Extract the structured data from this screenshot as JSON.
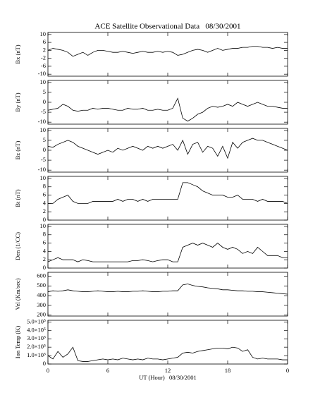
{
  "chart_data": {
    "title": "ACE Satellite Observational Data   08/30/2001",
    "xlabel": "UT (Hour)   08/30/2001",
    "xlim": [
      0,
      24
    ],
    "xticks": [
      0,
      6,
      12,
      18,
      {
        "value": 24,
        "label": "0"
      }
    ],
    "panels": [
      {
        "type": "line",
        "ylabel": "Bx (nT)",
        "ylim": [
          -11,
          11
        ],
        "yticks": [
          10,
          6,
          2,
          -2,
          -6,
          -10
        ],
        "color": "#000000",
        "x": [
          0,
          0.5,
          1,
          1.5,
          2,
          2.5,
          3,
          3.5,
          4,
          4.5,
          5,
          5.5,
          6,
          6.5,
          7,
          7.5,
          8,
          8.5,
          9,
          9.5,
          10,
          10.5,
          11,
          11.5,
          12,
          12.5,
          13,
          13.5,
          14,
          14.5,
          15,
          15.5,
          16,
          16.5,
          17,
          17.5,
          18,
          18.5,
          19,
          19.5,
          20,
          20.5,
          21,
          21.5,
          22,
          22.5,
          23,
          23.5,
          24
        ],
        "values": [
          2,
          3,
          2.5,
          2,
          1,
          -1,
          0,
          1,
          -0.5,
          1,
          2,
          2,
          1.5,
          1,
          1,
          1.5,
          1,
          0.5,
          1,
          1.5,
          1,
          1,
          1.5,
          1,
          1.5,
          1,
          -0.5,
          0,
          1,
          2,
          2.5,
          2,
          1,
          2,
          3,
          2,
          2.5,
          3,
          3,
          3.5,
          3.5,
          4,
          4,
          3.5,
          3.5,
          3,
          3.5,
          3,
          3
        ]
      },
      {
        "type": "line",
        "ylabel": "By (nT)",
        "ylim": [
          -11,
          11
        ],
        "yticks": [
          10,
          5,
          0,
          -5,
          -10
        ],
        "color": "#000000",
        "x": [
          0,
          0.5,
          1,
          1.5,
          2,
          2.5,
          3,
          3.5,
          4,
          4.5,
          5,
          5.5,
          6,
          6.5,
          7,
          7.5,
          8,
          8.5,
          9,
          9.5,
          10,
          10.5,
          11,
          11.5,
          12,
          12.5,
          13,
          13.5,
          14,
          14.5,
          15,
          15.5,
          16,
          16.5,
          17,
          17.5,
          18,
          18.5,
          19,
          19.5,
          20,
          20.5,
          21,
          21.5,
          22,
          22.5,
          23,
          23.5,
          24
        ],
        "values": [
          -4,
          -3.5,
          -3,
          -1,
          -2,
          -4,
          -4.5,
          -4,
          -4,
          -3,
          -3.5,
          -3,
          -3,
          -3.5,
          -4,
          -4,
          -3,
          -3.5,
          -3.5,
          -3,
          -4,
          -4,
          -3.5,
          -4,
          -4,
          -3,
          2,
          -8,
          -9.5,
          -8,
          -6,
          -5,
          -3,
          -2,
          -2.5,
          -2,
          -1,
          -2,
          0,
          -1,
          -2,
          -1,
          0,
          -1,
          -2,
          -2,
          -2.5,
          -3,
          -3
        ]
      },
      {
        "type": "line",
        "ylabel": "Bz (nT)",
        "ylim": [
          -11,
          11
        ],
        "yticks": [
          10,
          5,
          0,
          -5,
          -10
        ],
        "color": "#000000",
        "x": [
          0,
          0.5,
          1,
          1.5,
          2,
          2.5,
          3,
          3.5,
          4,
          4.5,
          5,
          5.5,
          6,
          6.5,
          7,
          7.5,
          8,
          8.5,
          9,
          9.5,
          10,
          10.5,
          11,
          11.5,
          12,
          12.5,
          13,
          13.5,
          14,
          14.5,
          15,
          15.5,
          16,
          16.5,
          17,
          17.5,
          18,
          18.5,
          19,
          19.5,
          20,
          20.5,
          21,
          21.5,
          22,
          22.5,
          23,
          23.5,
          24
        ],
        "values": [
          2,
          1.5,
          3,
          4,
          5,
          4,
          2,
          1,
          0,
          -1,
          -2,
          -1,
          0,
          -1,
          1,
          0,
          1,
          2,
          1,
          0,
          2,
          1,
          2,
          1,
          2,
          3,
          0,
          5,
          -2,
          3,
          4,
          -1,
          2,
          1,
          -3,
          2,
          -4,
          4,
          1,
          4,
          5,
          6,
          5,
          5,
          4,
          3,
          2,
          1,
          0
        ]
      },
      {
        "type": "line",
        "ylabel": "Bt (nT)",
        "ylim": [
          0,
          10.5
        ],
        "yticks": [
          0,
          2,
          4,
          6,
          8,
          10
        ],
        "color": "#000000",
        "x": [
          0,
          0.5,
          1,
          1.5,
          2,
          2.5,
          3,
          3.5,
          4,
          4.5,
          5,
          5.5,
          6,
          6.5,
          7,
          7.5,
          8,
          8.5,
          9,
          9.5,
          10,
          10.5,
          11,
          11.5,
          12,
          12.5,
          13,
          13.5,
          14,
          14.5,
          15,
          15.5,
          16,
          16.5,
          17,
          17.5,
          18,
          18.5,
          19,
          19.5,
          20,
          20.5,
          21,
          21.5,
          22,
          22.5,
          23,
          23.5,
          24
        ],
        "values": [
          4,
          4,
          5,
          5.5,
          6,
          4.5,
          4,
          4,
          4,
          4.5,
          4.5,
          4.5,
          4.5,
          4.5,
          5,
          4.5,
          5,
          5,
          4.5,
          5,
          4.5,
          5,
          5,
          5,
          5,
          5,
          5,
          9,
          9,
          8.5,
          8,
          7,
          6.5,
          6,
          6,
          6,
          5.5,
          5.5,
          6,
          5,
          5,
          5,
          4.5,
          5,
          4.5,
          4.5,
          4.5,
          4.5,
          4
        ]
      },
      {
        "type": "line",
        "ylabel": "Den (1/CC)",
        "ylim": [
          0,
          10.5
        ],
        "yticks": [
          0,
          2,
          4,
          6,
          8,
          10
        ],
        "color": "#000000",
        "x": [
          0,
          0.5,
          1,
          1.5,
          2,
          2.5,
          3,
          3.5,
          4,
          4.5,
          5,
          5.5,
          6,
          6.5,
          7,
          7.5,
          8,
          8.5,
          9,
          9.5,
          10,
          10.5,
          11,
          11.5,
          12,
          12.5,
          13,
          13.5,
          14,
          14.5,
          15,
          15.5,
          16,
          16.5,
          17,
          17.5,
          18,
          18.5,
          19,
          19.5,
          20,
          20.5,
          21,
          21.5,
          22,
          22.5,
          23,
          23.5,
          24
        ],
        "values": [
          1.5,
          2,
          2.5,
          2,
          2,
          2,
          1.5,
          2,
          1.8,
          1.5,
          1.5,
          1.5,
          1.5,
          1.5,
          1.5,
          1.5,
          1.5,
          1.8,
          1.8,
          2,
          1.8,
          1.5,
          1.8,
          2,
          2,
          1.5,
          1.5,
          5,
          5.5,
          6,
          5.5,
          6,
          5.5,
          5,
          6,
          5,
          4.5,
          5,
          4.5,
          3.5,
          4,
          3.5,
          5,
          4,
          3,
          3,
          3,
          2.5,
          2.5
        ]
      },
      {
        "type": "line",
        "ylabel": "Vel (Km/sec)",
        "ylim": [
          190,
          640
        ],
        "yticks": [
          200,
          300,
          400,
          500,
          600
        ],
        "color": "#000000",
        "x": [
          0,
          0.5,
          1,
          1.5,
          2,
          2.5,
          3,
          3.5,
          4,
          4.5,
          5,
          5.5,
          6,
          6.5,
          7,
          7.5,
          8,
          8.5,
          9,
          9.5,
          10,
          10.5,
          11,
          11.5,
          12,
          12.5,
          13,
          13.5,
          14,
          14.5,
          15,
          15.5,
          16,
          16.5,
          17,
          17.5,
          18,
          18.5,
          19,
          19.5,
          20,
          20.5,
          21,
          21.5,
          22,
          22.5,
          23,
          23.5,
          24
        ],
        "values": [
          440,
          450,
          445,
          450,
          460,
          450,
          445,
          440,
          440,
          445,
          450,
          445,
          440,
          440,
          445,
          440,
          440,
          445,
          445,
          450,
          445,
          440,
          440,
          445,
          445,
          450,
          450,
          510,
          520,
          505,
          495,
          490,
          480,
          475,
          470,
          460,
          460,
          455,
          450,
          450,
          445,
          445,
          440,
          440,
          435,
          430,
          425,
          420,
          415
        ]
      },
      {
        "type": "line",
        "ylabel": "Ion Temp (K)",
        "ylim": [
          0,
          520000
        ],
        "yticks": [
          0,
          {
            "value": 100000,
            "label": "1.0×10⁵"
          },
          {
            "value": 200000,
            "label": "2.0×10⁵"
          },
          {
            "value": 300000,
            "label": "3.0×10⁵"
          },
          {
            "value": 400000,
            "label": "4.0×10⁵"
          },
          {
            "value": 500000,
            "label": "5.0×10⁵"
          }
        ],
        "color": "#000000",
        "x": [
          0,
          0.5,
          1,
          1.5,
          2,
          2.5,
          3,
          3.5,
          4,
          4.5,
          5,
          5.5,
          6,
          6.5,
          7,
          7.5,
          8,
          8.5,
          9,
          9.5,
          10,
          10.5,
          11,
          11.5,
          12,
          12.5,
          13,
          13.5,
          14,
          14.5,
          15,
          15.5,
          16,
          16.5,
          17,
          17.5,
          18,
          18.5,
          19,
          19.5,
          20,
          20.5,
          21,
          21.5,
          22,
          22.5,
          23,
          23.5,
          24
        ],
        "values": [
          100000,
          60000,
          150000,
          80000,
          120000,
          200000,
          40000,
          30000,
          30000,
          40000,
          50000,
          60000,
          50000,
          60000,
          50000,
          70000,
          60000,
          50000,
          60000,
          50000,
          70000,
          60000,
          60000,
          50000,
          60000,
          70000,
          80000,
          130000,
          140000,
          130000,
          150000,
          160000,
          170000,
          180000,
          190000,
          190000,
          180000,
          200000,
          190000,
          150000,
          170000,
          80000,
          60000,
          70000,
          60000,
          60000,
          60000,
          50000,
          50000
        ]
      }
    ]
  }
}
